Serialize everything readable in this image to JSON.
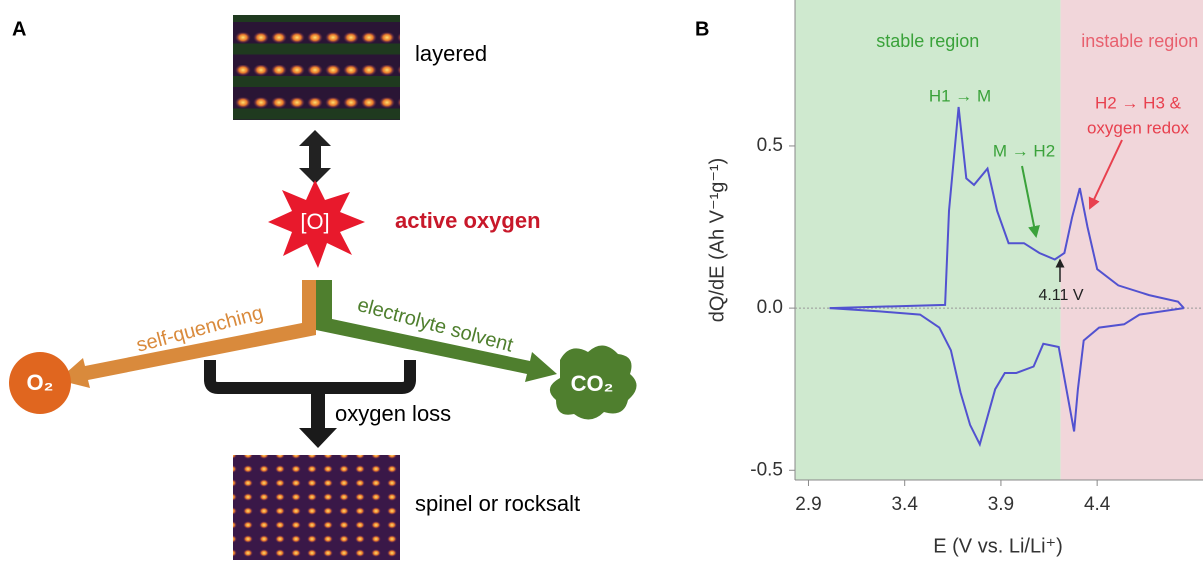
{
  "panel_a": {
    "label": "A",
    "top_image_label": "layered",
    "center_symbol": "[O]",
    "center_label": "active oxygen",
    "left_branch": "self-quenching",
    "right_branch": "electrolyte solvent",
    "left_product": "O₂",
    "right_product": "CO₂",
    "bottom_branch": "oxygen loss",
    "bottom_image_label": "spinel or rocksalt"
  },
  "panel_b": {
    "label": "B"
  },
  "chart_data": {
    "type": "line",
    "xlabel": "E (V vs. Li/Li⁺)",
    "ylabel": "dQ/dE (Ah V⁻¹g⁻¹)",
    "xlim": [
      2.83,
      4.95
    ],
    "ylim": [
      -0.53,
      0.95
    ],
    "xticks": [
      2.9,
      3.4,
      3.9,
      4.4
    ],
    "yticks": [
      -0.5,
      {
        "value": 0,
        "label": "0.0"
      },
      0.5
    ],
    "regions": [
      {
        "label": "stable region",
        "from": 2.83,
        "to": 4.21,
        "color": "#cfe9cf",
        "text_color": "#3aa23a"
      },
      {
        "label": "instable region",
        "from": 4.21,
        "to": 4.95,
        "color": "#f1d6da",
        "text_color": "#e8606e"
      }
    ],
    "annotations": [
      "H1 → M",
      "M → H2",
      "H2 → H3 &",
      "oxygen redox",
      "4.11 V"
    ],
    "series": [
      {
        "color": "#5252d0",
        "x": [
          3.01,
          3.61,
          3.63,
          3.68,
          3.72,
          3.76,
          3.83,
          3.88,
          3.94,
          4.02,
          4.1,
          4.18,
          4.23,
          4.27,
          4.31,
          4.35,
          4.4,
          4.51,
          4.67,
          4.82,
          4.85
        ],
        "values": [
          0,
          0.01,
          0.3,
          0.62,
          0.4,
          0.38,
          0.43,
          0.3,
          0.2,
          0.2,
          0.17,
          0.15,
          0.17,
          0.28,
          0.37,
          0.25,
          0.12,
          0.07,
          0.04,
          0.02,
          0
        ]
      },
      {
        "color": "#5252d0",
        "x": [
          4.85,
          4.62,
          4.54,
          4.41,
          4.33,
          4.3,
          4.28,
          4.24,
          4.2,
          4.12,
          4.07,
          3.98,
          3.92,
          3.87,
          3.79,
          3.74,
          3.69,
          3.64,
          3.58,
          3.48,
          3.27,
          3.01
        ],
        "values": [
          0,
          -0.02,
          -0.05,
          -0.06,
          -0.1,
          -0.25,
          -0.38,
          -0.25,
          -0.12,
          -0.11,
          -0.18,
          -0.2,
          -0.2,
          -0.25,
          -0.42,
          -0.36,
          -0.26,
          -0.13,
          -0.06,
          -0.02,
          -0.01,
          0
        ]
      }
    ]
  }
}
